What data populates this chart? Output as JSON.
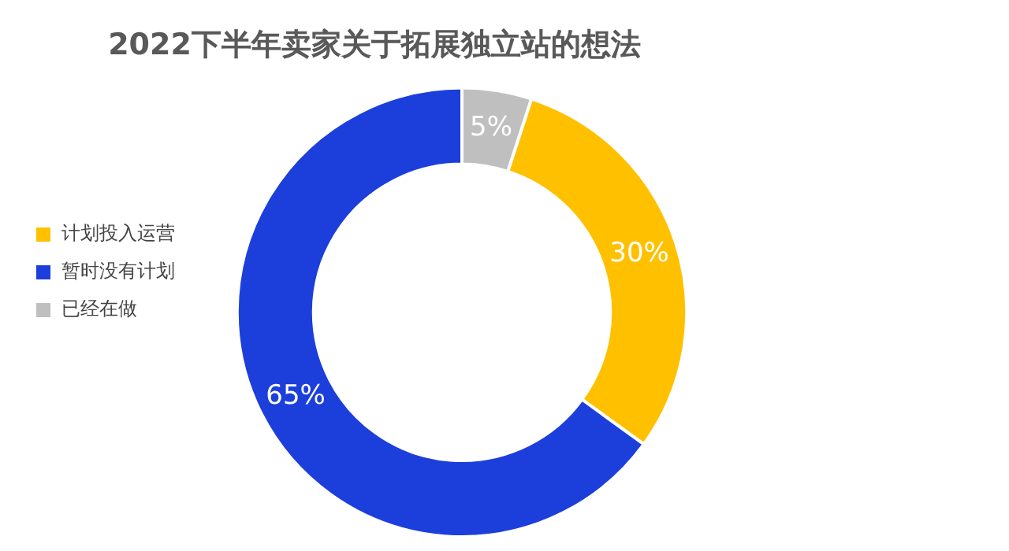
{
  "chart_data": {
    "type": "donut",
    "title": "2022下半年卖家关于拓展独立站的想法",
    "categories": [
      "计划投入运营",
      "暂时没有计划",
      "已经在做"
    ],
    "values": [
      30,
      65,
      5
    ],
    "colors": [
      "#ffc000",
      "#1c3fdc",
      "#bfbfbf"
    ],
    "value_labels": [
      "30%",
      "65%",
      "5%"
    ],
    "legend": "left"
  }
}
